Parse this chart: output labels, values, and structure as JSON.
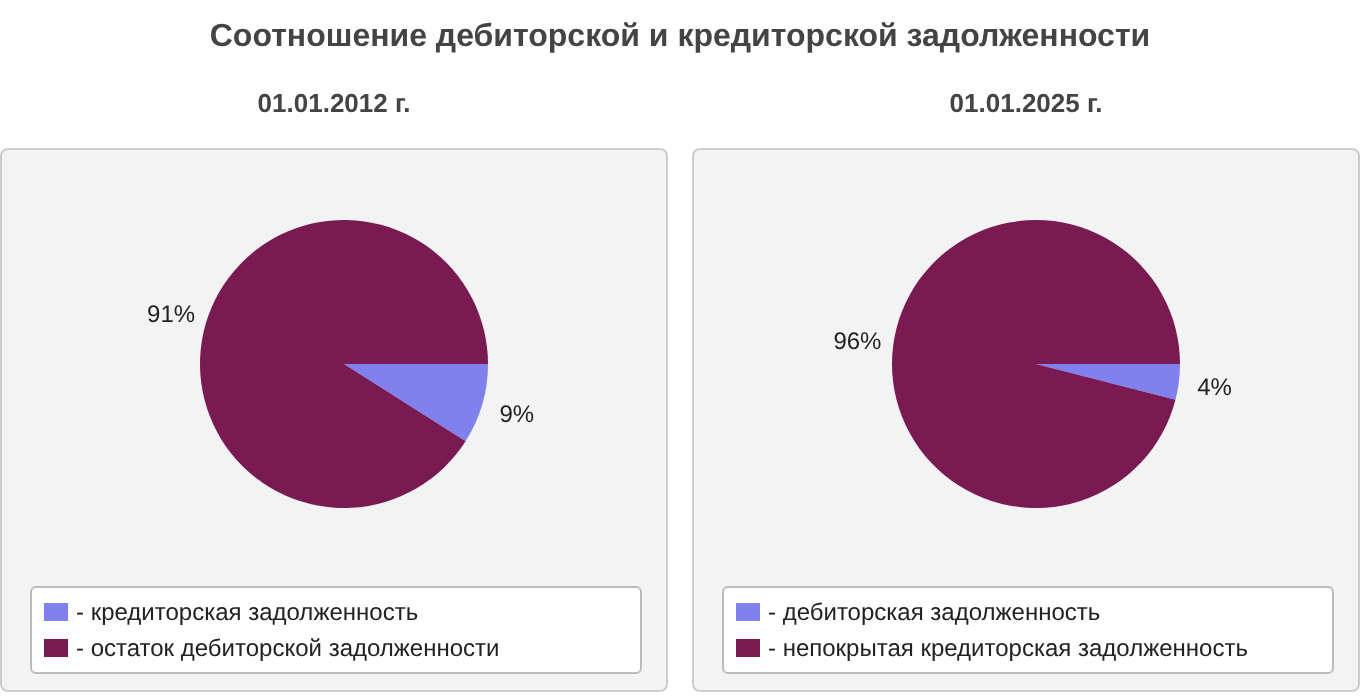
{
  "chart_data": [
    {
      "type": "pie",
      "title": "Соотношение дебиторской и кредиторской задолженности",
      "subtitle": "01.01.2012 г.",
      "categories": [
        "- кредиторская задолженность",
        "- остаток дебиторской задолженности"
      ],
      "values": [
        9,
        91
      ],
      "value_labels": [
        "9%",
        "91%"
      ],
      "colors": [
        "#8080ee",
        "#7a1a52"
      ],
      "legend": "bottom"
    },
    {
      "type": "pie",
      "subtitle": "01.01.2025 г.",
      "categories": [
        "- дебиторская задолженность",
        "- непокрытая кредиторская задолженность"
      ],
      "values": [
        4,
        96
      ],
      "value_labels": [
        "4%",
        "96%"
      ],
      "colors": [
        "#8080ee",
        "#7a1a52"
      ],
      "legend": "bottom"
    }
  ]
}
